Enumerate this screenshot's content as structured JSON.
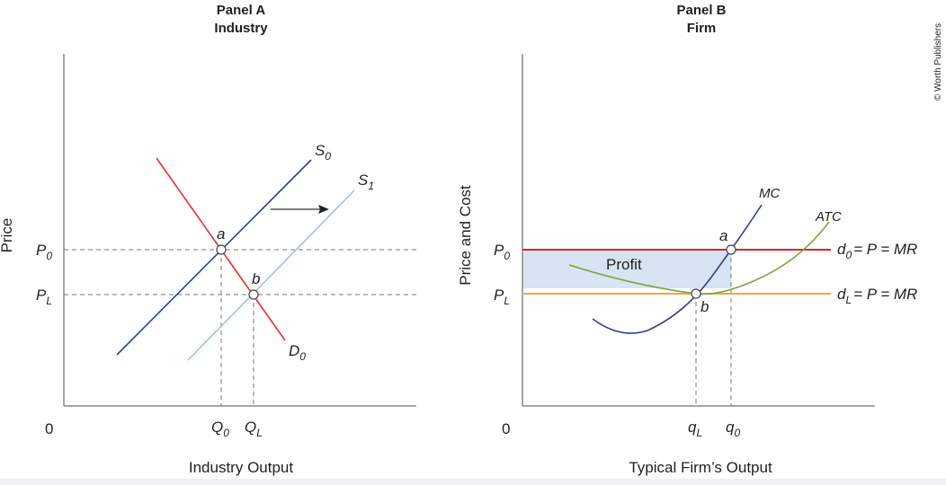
{
  "panel_a": {
    "title": "Panel A",
    "subtitle": "Industry",
    "y_axis_label": "Price",
    "x_axis_label": "Industry Output",
    "origin": "0",
    "price_labels": {
      "p0": "P",
      "p0_sub": "0",
      "pl": "P",
      "pl_sub": "L"
    },
    "quantity_labels": {
      "q0": "Q",
      "q0_sub": "0",
      "ql": "Q",
      "ql_sub": "L"
    },
    "curves": {
      "s0": "S",
      "s0_sub": "0",
      "s1": "S",
      "s1_sub": "1",
      "d0": "D",
      "d0_sub": "0"
    },
    "points": {
      "a": "a",
      "b": "b"
    }
  },
  "panel_b": {
    "title": "Panel B",
    "subtitle": "Firm",
    "y_axis_label": "Price and Cost",
    "x_axis_label": "Typical Firm’s Output",
    "origin": "0",
    "price_labels": {
      "p0": "P",
      "p0_sub": "0",
      "pl": "P",
      "pl_sub": "L"
    },
    "quantity_labels": {
      "ql": "q",
      "ql_sub": "L",
      "q0": "q",
      "q0_sub": "0"
    },
    "curves": {
      "mc": "MC",
      "atc": "ATC",
      "d0_pre": "d",
      "d0_sub": "0",
      "d0_post": "= P = MR",
      "dl_pre": "d",
      "dl_sub": "L",
      "dl_post": "= P = MR"
    },
    "area_label": "Profit",
    "points": {
      "a": "a",
      "b": "b"
    }
  },
  "copyright": "© Worth Publishers",
  "colors": {
    "supply0": "#2e3f94",
    "supply1": "#9cc3e6",
    "demand": "#e8312f",
    "mc": "#2e3f94",
    "atc": "#7ea63a",
    "d0": "#d8262c",
    "dl": "#f4a24a",
    "profit": "#d6e4f4"
  }
}
